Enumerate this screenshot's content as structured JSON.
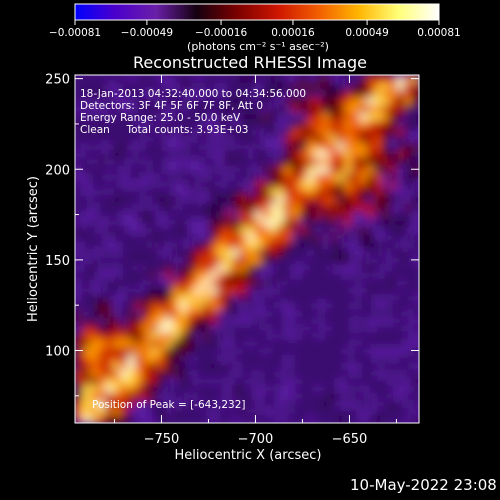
{
  "chart_data": {
    "type": "heatmap",
    "title": "Reconstructed RHESSI Image",
    "xlabel": "Heliocentric X (arcsec)",
    "ylabel": "Heliocentric Y (arcsec)",
    "xlim": [
      -796,
      -613
    ],
    "ylim": [
      60,
      252
    ],
    "x_ticks": [
      -750,
      -700,
      -650
    ],
    "y_ticks": [
      100,
      150,
      200,
      250
    ],
    "x_tick_labels": [
      "−750",
      "−700",
      "−650"
    ],
    "y_tick_labels": [
      "100",
      "150",
      "200",
      "250"
    ],
    "colorbar": {
      "range": [
        -0.00081,
        0.00081
      ],
      "tick_values": [
        -0.00081,
        -0.00049,
        -0.00016,
        0.00016,
        0.00049,
        0.00081
      ],
      "tick_labels": [
        "−0.00081",
        "−0.00049",
        "−0.00016",
        "0.00016",
        "0.00049",
        "0.00081"
      ],
      "unit_label": "(photons cm⁻² s⁻¹ asec⁻²)",
      "colors": [
        "#0000ff",
        "#4b00cc",
        "#6a1fa8",
        "#150010",
        "#7a0000",
        "#cc1500",
        "#f25c00",
        "#ffb400",
        "#ffff78",
        "#ffffff"
      ]
    },
    "annotations": [
      "18-Jan-2013 04:32:40.000 to 04:34:56.000",
      "Detectors: 3F 4F 5F 6F 7F 8F, Att 0",
      "Energy Range: 25.0 - 50.0 keV",
      "Clean     Total counts: 3.93E+03",
      "Position of Peak = [-643,232]"
    ],
    "peak_position": [
      -643,
      232
    ],
    "grid": false,
    "legend": "none"
  },
  "timestamp": "10-May-2022 23:08"
}
